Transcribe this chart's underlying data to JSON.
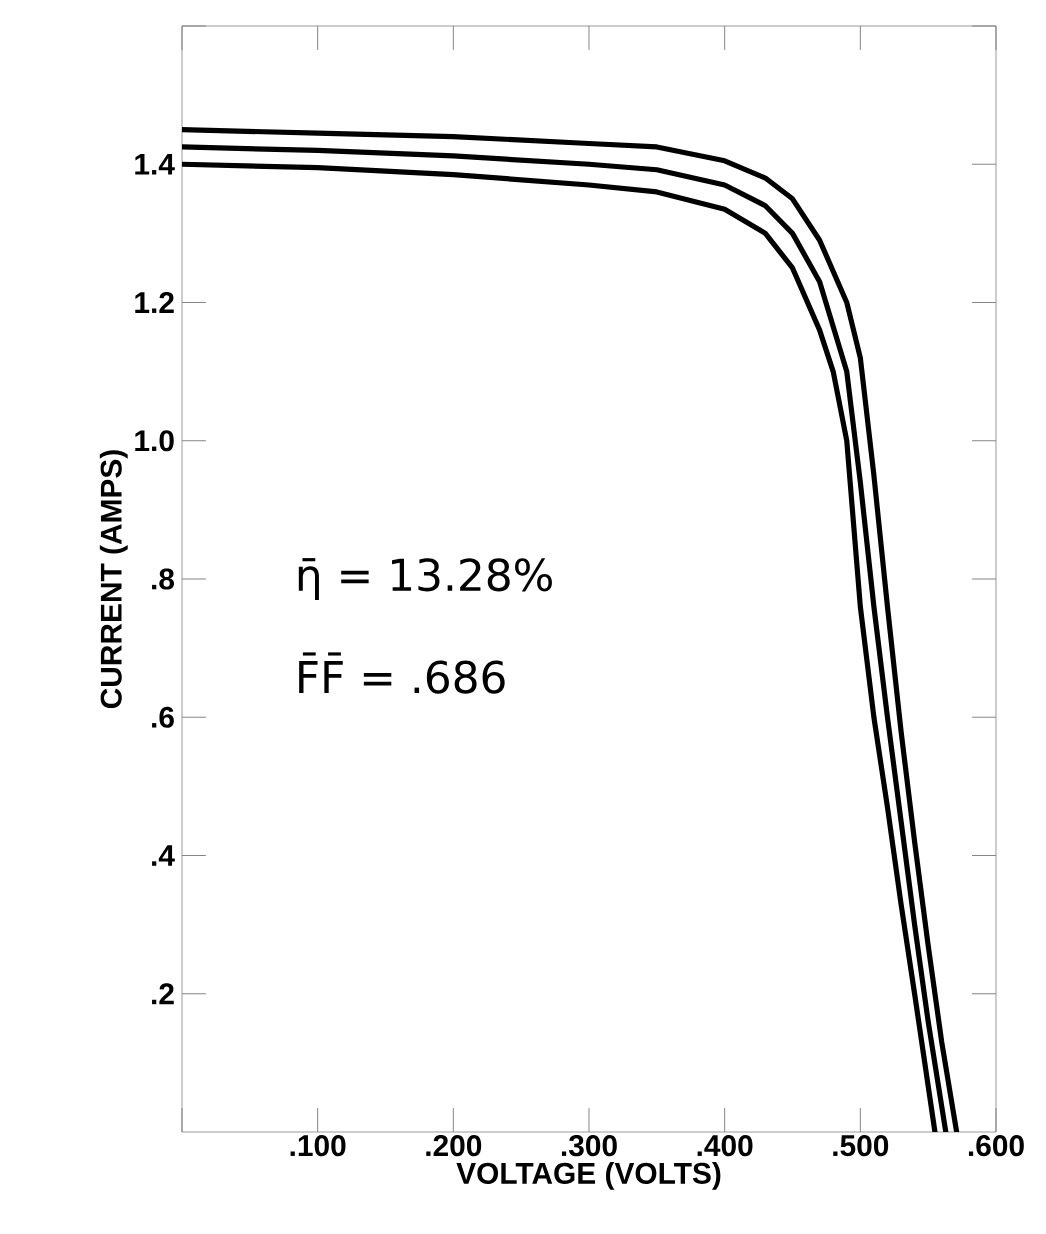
{
  "chart_data": {
    "type": "line",
    "xlabel": "VOLTAGE (VOLTS)",
    "ylabel": "CURRENT (AMPS)",
    "xlim": [
      0,
      0.6
    ],
    "ylim": [
      0,
      1.6
    ],
    "xticks": [
      {
        "value": 0,
        "label": null
      },
      {
        "value": 0.1,
        "label": ".100"
      },
      {
        "value": 0.2,
        "label": ".200"
      },
      {
        "value": 0.3,
        "label": ".300"
      },
      {
        "value": 0.4,
        "label": ".400"
      },
      {
        "value": 0.5,
        "label": ".500"
      },
      {
        "value": 0.6,
        "label": ".600"
      }
    ],
    "yticks": [
      {
        "value": 0.2,
        "label": ".2"
      },
      {
        "value": 0.4,
        "label": ".4"
      },
      {
        "value": 0.6,
        "label": ".6"
      },
      {
        "value": 0.8,
        "label": ".8"
      },
      {
        "value": 1.0,
        "label": "1.0"
      },
      {
        "value": 1.2,
        "label": "1.2"
      },
      {
        "value": 1.4,
        "label": "1.4"
      },
      {
        "value": 1.6,
        "label": null
      }
    ],
    "annotations": [
      "η̄ = 13.28%",
      "F̄F̄ = .686"
    ],
    "series": [
      {
        "color": "#000000",
        "x": [
          0,
          0.1,
          0.2,
          0.3,
          0.35,
          0.4,
          0.43,
          0.45,
          0.47,
          0.49,
          0.5,
          0.51,
          0.52,
          0.53,
          0.54,
          0.55,
          0.56,
          0.571
        ],
        "values": [
          1.45,
          1.445,
          1.44,
          1.43,
          1.425,
          1.405,
          1.38,
          1.35,
          1.29,
          1.2,
          1.12,
          0.95,
          0.76,
          0.58,
          0.42,
          0.27,
          0.13,
          0
        ]
      },
      {
        "color": "#000000",
        "x": [
          0,
          0.1,
          0.2,
          0.3,
          0.35,
          0.4,
          0.43,
          0.45,
          0.47,
          0.49,
          0.5,
          0.51,
          0.52,
          0.53,
          0.54,
          0.55,
          0.563
        ],
        "values": [
          1.425,
          1.42,
          1.412,
          1.4,
          1.392,
          1.37,
          1.34,
          1.3,
          1.23,
          1.1,
          0.94,
          0.76,
          0.6,
          0.45,
          0.3,
          0.16,
          0
        ]
      },
      {
        "color": "#000000",
        "x": [
          0,
          0.1,
          0.2,
          0.3,
          0.35,
          0.4,
          0.43,
          0.45,
          0.47,
          0.48,
          0.49,
          0.5,
          0.51,
          0.52,
          0.53,
          0.54,
          0.555
        ],
        "values": [
          1.4,
          1.395,
          1.385,
          1.37,
          1.36,
          1.335,
          1.3,
          1.25,
          1.16,
          1.1,
          1.0,
          0.76,
          0.6,
          0.47,
          0.33,
          0.2,
          0
        ]
      }
    ]
  }
}
